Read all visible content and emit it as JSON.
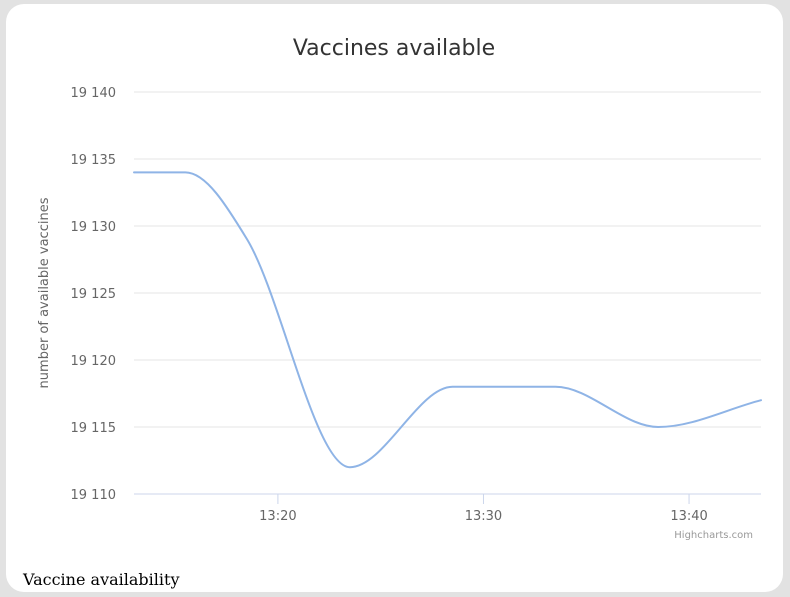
{
  "card": {
    "caption": "Vaccine availability",
    "credits": "Highcharts.com"
  },
  "chart_data": {
    "type": "line",
    "title": "Vaccines available",
    "xlabel": "",
    "ylabel": "number of available vaccines",
    "x_ticks": [
      "13:20",
      "13:30",
      "13:40"
    ],
    "x_tick_minutes": [
      20,
      30,
      40
    ],
    "xlim_minutes": [
      13.0,
      43.5
    ],
    "ylim": [
      19110,
      19140
    ],
    "y_ticks": [
      19110,
      19115,
      19120,
      19125,
      19130,
      19135,
      19140
    ],
    "y_tick_labels": [
      "19 110",
      "19 115",
      "19 120",
      "19 125",
      "19 130",
      "19 135",
      "19 140"
    ],
    "grid": true,
    "legend": "none",
    "series": [
      {
        "color": "#8fb4e6",
        "x_minutes": [
          13.0,
          15.5,
          18.5,
          23.5,
          28.5,
          33.5,
          38.5,
          43.5
        ],
        "y": [
          19134,
          19134,
          19129,
          19112,
          19118,
          19118,
          19115,
          19117
        ]
      }
    ]
  }
}
